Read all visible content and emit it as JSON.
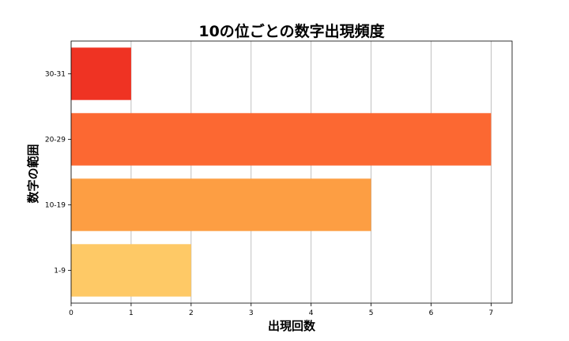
{
  "chart_data": {
    "type": "bar",
    "orientation": "horizontal",
    "title": "10の位ごとの数字出現頻度",
    "xlabel": "出現回数",
    "ylabel": "数字の範囲",
    "categories": [
      "1-9",
      "10-19",
      "20-29",
      "30-31"
    ],
    "values": [
      2,
      5,
      7,
      1
    ],
    "colors": [
      "#fec966",
      "#fd9e43",
      "#fc6832",
      "#ef3323"
    ],
    "xlim": [
      0,
      7.35
    ],
    "xticks": [
      0,
      1,
      2,
      3,
      4,
      5,
      6,
      7
    ],
    "grid": "x"
  }
}
